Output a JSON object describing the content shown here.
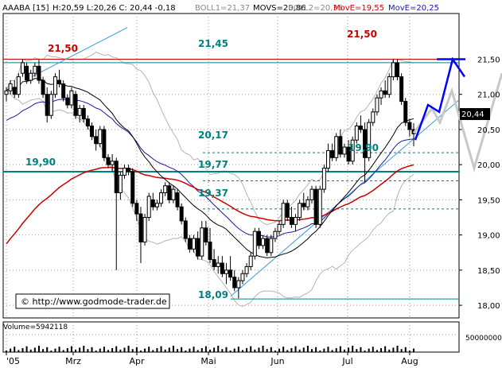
{
  "header": {
    "symbol": "AAABA [15]",
    "ohlc": "H:20,59 L:20,26 C: 20,44 -0,18",
    "boll1": "BOLL1=21,37",
    "movs": "MOVS=20,86",
    "boll2": "BOLL2=20,35",
    "move_red": "MovE=19,55",
    "move_blue": "MovE=20,25"
  },
  "colors": {
    "background": "#ffffff",
    "candle": "#000000",
    "bollinger": "#b4b4b4",
    "movs": "#000000",
    "move_red": "#cc0000",
    "move_blue": "#1a1aa0",
    "levels": "#008080",
    "trend": "#3a9ad9",
    "projection_blue": "#0000ff",
    "projection_gray": "#c8c8c8",
    "price_box": "#000000"
  },
  "watermark": "© http://www.godmode-trader.de",
  "volume_label": "Volume=5942118",
  "volume_axis_label": "50000000",
  "last_price_label": "20,44",
  "chart_data": {
    "type": "candlestick",
    "x_labels": [
      "'05",
      "Mrz",
      "Apr",
      "Mai",
      "Jun",
      "Jul",
      "Aug"
    ],
    "y_ticks": [
      "21,50",
      "21,00",
      "20,50",
      "20,00",
      "19,50",
      "19,00",
      "18,50",
      "18,00"
    ],
    "ylim": [
      17.82,
      22.15
    ],
    "levels": [
      {
        "label": "21,45",
        "value": 21.45,
        "style": "solid"
      },
      {
        "label": "20,17",
        "value": 20.17,
        "style": "dashed"
      },
      {
        "label": "19,77",
        "value": 19.77,
        "style": "dashed"
      },
      {
        "label": "19,37",
        "value": 19.37,
        "style": "dashed"
      },
      {
        "label": "18,09",
        "value": 18.09,
        "style": "solid"
      },
      {
        "label": "19,90",
        "value": 19.9,
        "style": "thick"
      }
    ],
    "annotations": [
      {
        "label": "21,50",
        "value": 21.5
      },
      {
        "label": "21,50",
        "value": 21.5
      },
      {
        "label": "19,90",
        "value": 19.9
      },
      {
        "label": "19,90",
        "value": 19.9
      }
    ],
    "red_line": 21.5,
    "ohlc": [
      [
        21.0,
        21.1,
        20.9,
        21.05
      ],
      [
        21.05,
        21.2,
        21.0,
        21.15
      ],
      [
        21.1,
        21.2,
        20.95,
        21.0
      ],
      [
        21.0,
        21.3,
        20.95,
        21.25
      ],
      [
        21.3,
        21.5,
        21.25,
        21.45
      ],
      [
        21.4,
        21.45,
        21.15,
        21.2
      ],
      [
        21.2,
        21.35,
        21.15,
        21.3
      ],
      [
        21.3,
        21.45,
        21.25,
        21.4
      ],
      [
        21.4,
        21.5,
        21.15,
        21.2
      ],
      [
        21.2,
        21.25,
        20.95,
        21.0
      ],
      [
        21.0,
        21.1,
        20.6,
        20.7
      ],
      [
        20.7,
        21.05,
        20.65,
        21.0
      ],
      [
        21.0,
        21.3,
        20.95,
        21.25
      ],
      [
        21.2,
        21.35,
        21.1,
        21.15
      ],
      [
        21.15,
        21.2,
        20.9,
        20.95
      ],
      [
        20.95,
        21.0,
        20.8,
        20.85
      ],
      [
        20.85,
        21.1,
        20.8,
        21.05
      ],
      [
        21.0,
        21.05,
        20.65,
        20.7
      ],
      [
        20.7,
        20.85,
        20.6,
        20.8
      ],
      [
        20.8,
        20.85,
        20.6,
        20.65
      ],
      [
        20.65,
        20.7,
        20.5,
        20.55
      ],
      [
        20.55,
        20.6,
        20.35,
        20.4
      ],
      [
        20.4,
        20.5,
        20.2,
        20.3
      ],
      [
        20.3,
        20.55,
        20.25,
        20.5
      ],
      [
        20.5,
        20.55,
        20.05,
        20.1
      ],
      [
        20.1,
        20.15,
        19.95,
        20.0
      ],
      [
        20.0,
        20.15,
        19.9,
        20.05
      ],
      [
        20.05,
        20.1,
        18.5,
        19.6
      ],
      [
        19.6,
        19.9,
        19.5,
        19.85
      ],
      [
        19.85,
        20.0,
        19.8,
        19.95
      ],
      [
        19.95,
        20.0,
        19.85,
        19.9
      ],
      [
        19.9,
        19.95,
        19.4,
        19.45
      ],
      [
        19.45,
        19.5,
        19.2,
        19.3
      ],
      [
        19.3,
        19.4,
        18.6,
        18.9
      ],
      [
        18.9,
        19.3,
        18.85,
        19.25
      ],
      [
        19.25,
        19.6,
        19.2,
        19.55
      ],
      [
        19.5,
        19.6,
        19.35,
        19.4
      ],
      [
        19.4,
        19.5,
        19.35,
        19.45
      ],
      [
        19.45,
        19.65,
        19.4,
        19.6
      ],
      [
        19.6,
        19.75,
        19.55,
        19.7
      ],
      [
        19.7,
        19.75,
        19.45,
        19.5
      ],
      [
        19.5,
        19.7,
        19.45,
        19.65
      ],
      [
        19.6,
        19.65,
        19.35,
        19.4
      ],
      [
        19.4,
        19.45,
        19.15,
        19.2
      ],
      [
        19.2,
        19.25,
        18.9,
        18.95
      ],
      [
        18.95,
        19.0,
        18.75,
        18.8
      ],
      [
        18.8,
        19.0,
        18.75,
        18.95
      ],
      [
        18.95,
        19.05,
        18.65,
        18.7
      ],
      [
        18.7,
        19.2,
        18.65,
        19.1
      ],
      [
        19.1,
        19.2,
        18.85,
        18.9
      ],
      [
        18.9,
        19.1,
        18.6,
        18.65
      ],
      [
        18.65,
        18.8,
        18.5,
        18.55
      ],
      [
        18.55,
        18.7,
        18.45,
        18.6
      ],
      [
        18.6,
        18.7,
        18.4,
        18.45
      ],
      [
        18.45,
        18.6,
        18.3,
        18.5
      ],
      [
        18.5,
        18.7,
        18.35,
        18.4
      ],
      [
        18.4,
        18.5,
        18.2,
        18.25
      ],
      [
        18.25,
        18.4,
        18.1,
        18.35
      ],
      [
        18.35,
        18.5,
        18.3,
        18.45
      ],
      [
        18.45,
        18.6,
        18.4,
        18.55
      ],
      [
        18.55,
        18.75,
        18.5,
        18.7
      ],
      [
        18.7,
        19.1,
        18.65,
        19.05
      ],
      [
        19.05,
        19.1,
        18.8,
        18.85
      ],
      [
        18.85,
        19.0,
        18.8,
        18.95
      ],
      [
        18.95,
        19.0,
        18.7,
        18.75
      ],
      [
        18.75,
        19.0,
        18.7,
        18.95
      ],
      [
        18.95,
        19.1,
        18.9,
        19.05
      ],
      [
        19.05,
        19.2,
        19.0,
        19.15
      ],
      [
        19.15,
        19.5,
        19.1,
        19.45
      ],
      [
        19.45,
        19.5,
        19.2,
        19.25
      ],
      [
        19.25,
        19.4,
        19.1,
        19.15
      ],
      [
        19.15,
        19.3,
        19.05,
        19.25
      ],
      [
        19.25,
        19.5,
        19.2,
        19.45
      ],
      [
        19.45,
        19.6,
        19.35,
        19.4
      ],
      [
        19.4,
        19.55,
        19.35,
        19.5
      ],
      [
        19.5,
        19.7,
        19.45,
        19.65
      ],
      [
        19.65,
        19.7,
        19.1,
        19.15
      ],
      [
        19.15,
        19.7,
        19.1,
        19.65
      ],
      [
        19.65,
        20.0,
        19.6,
        19.95
      ],
      [
        19.95,
        20.3,
        19.9,
        20.2
      ],
      [
        20.2,
        20.3,
        20.05,
        20.1
      ],
      [
        20.1,
        20.45,
        20.05,
        20.4
      ],
      [
        20.4,
        20.5,
        20.1,
        20.15
      ],
      [
        20.15,
        20.3,
        20.1,
        20.25
      ],
      [
        20.25,
        20.35,
        20.0,
        20.05
      ],
      [
        20.05,
        20.4,
        20.0,
        20.35
      ],
      [
        20.35,
        20.6,
        20.3,
        20.55
      ],
      [
        20.55,
        20.7,
        20.45,
        20.5
      ],
      [
        20.5,
        20.6,
        19.75,
        20.1
      ],
      [
        20.1,
        20.65,
        20.05,
        20.6
      ],
      [
        20.6,
        20.8,
        20.55,
        20.75
      ],
      [
        20.75,
        21.0,
        20.7,
        20.95
      ],
      [
        20.95,
        21.1,
        20.85,
        21.05
      ],
      [
        21.05,
        21.2,
        20.95,
        21.0
      ],
      [
        21.0,
        21.3,
        20.95,
        21.25
      ],
      [
        21.25,
        21.5,
        21.2,
        21.45
      ],
      [
        21.45,
        21.5,
        21.2,
        21.25
      ],
      [
        21.25,
        21.3,
        20.85,
        20.9
      ],
      [
        20.9,
        20.95,
        20.55,
        20.6
      ],
      [
        20.6,
        20.65,
        20.4,
        20.5
      ],
      [
        20.5,
        20.59,
        20.26,
        20.44
      ]
    ]
  }
}
